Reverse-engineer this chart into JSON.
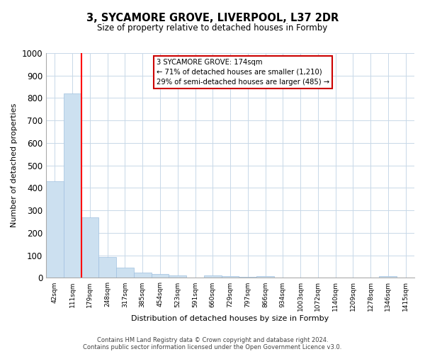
{
  "title": "3, SYCAMORE GROVE, LIVERPOOL, L37 2DR",
  "subtitle": "Size of property relative to detached houses in Formby",
  "xlabel": "Distribution of detached houses by size in Formby",
  "ylabel": "Number of detached properties",
  "categories": [
    "42sqm",
    "111sqm",
    "179sqm",
    "248sqm",
    "317sqm",
    "385sqm",
    "454sqm",
    "523sqm",
    "591sqm",
    "660sqm",
    "729sqm",
    "797sqm",
    "866sqm",
    "934sqm",
    "1003sqm",
    "1072sqm",
    "1140sqm",
    "1209sqm",
    "1278sqm",
    "1346sqm",
    "1415sqm"
  ],
  "values": [
    430,
    820,
    270,
    93,
    47,
    22,
    17,
    10,
    0,
    10,
    8,
    5,
    7,
    0,
    0,
    0,
    0,
    0,
    0,
    8,
    0
  ],
  "bar_color": "#cce0f0",
  "bar_edgecolor": "#a0c0e0",
  "redline_index": 1.5,
  "annotation_text": "3 SYCAMORE GROVE: 174sqm\n← 71% of detached houses are smaller (1,210)\n29% of semi-detached houses are larger (485) →",
  "annotation_box_color": "#ffffff",
  "annotation_box_edgecolor": "#cc0000",
  "ylim": [
    0,
    1000
  ],
  "yticks": [
    0,
    100,
    200,
    300,
    400,
    500,
    600,
    700,
    800,
    900,
    1000
  ],
  "footer_line1": "Contains HM Land Registry data © Crown copyright and database right 2024.",
  "footer_line2": "Contains public sector information licensed under the Open Government Licence v3.0.",
  "background_color": "#ffffff",
  "grid_color": "#c8d8e8"
}
